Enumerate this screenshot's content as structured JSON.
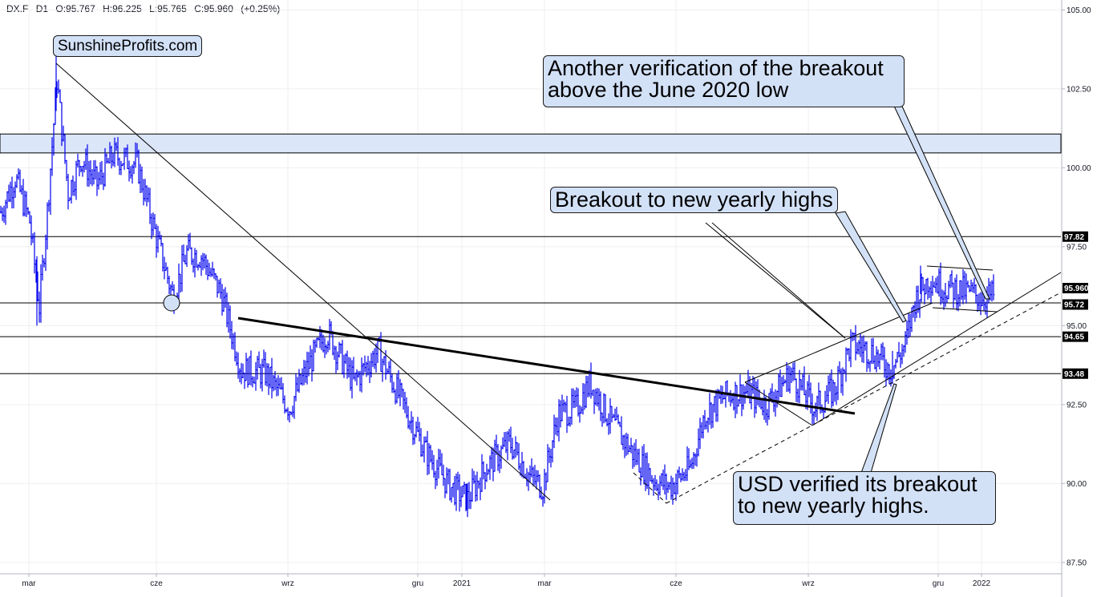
{
  "header": {
    "symbol": "DX.F",
    "timeframe": "D1",
    "open": "O:95.767",
    "high": "H:96.225",
    "low": "L:95.765",
    "close": "C:95.960",
    "change": "(+0.25%)"
  },
  "watermark": "SunshineProfits.com",
  "annotations": {
    "top_right": [
      "Another verification of the breakout",
      "above the June 2020 low"
    ],
    "middle": "Breakout to new yearly highs",
    "bottom_right": [
      "USD verified its breakout",
      "to new yearly highs."
    ]
  },
  "colors": {
    "price_bars": "#0000ee",
    "annotation_fill": "#d3e1f7",
    "zone_fill": "#dbe6f8",
    "grid": "#eeeeee",
    "price_label_bg": "#000000"
  },
  "chart_data": {
    "type": "ohlc",
    "symbol": "DX.F",
    "timeframe": "D1",
    "ylim": [
      87.5,
      106.2
    ],
    "y_ticks": [
      "105.00",
      "102.50",
      "100.00",
      "97.50",
      "95.00",
      "92.50",
      "90.00",
      "87.50"
    ],
    "x_ticks": [
      "mar",
      "cze",
      "wrz",
      "gru",
      "2021",
      "mar",
      "cze",
      "wrz",
      "gru",
      "2022"
    ],
    "price_labels": [
      {
        "text": "97.82",
        "value": 97.82
      },
      {
        "text": "95.960",
        "value": 95.96
      },
      {
        "text": "95.72",
        "value": 95.72
      },
      {
        "text": "94.65",
        "value": 94.65
      },
      {
        "text": "93.48",
        "value": 93.48
      }
    ],
    "resistance_zone": [
      100.47,
      101.07
    ],
    "horizontal_levels": [
      97.82,
      95.72,
      94.65,
      93.48
    ],
    "approx_close_path": [
      {
        "t": 0,
        "v": 98.6
      },
      {
        "t": 18,
        "v": 99.7
      },
      {
        "t": 36,
        "v": 98.3
      },
      {
        "t": 48,
        "v": 95.6
      },
      {
        "t": 58,
        "v": 98.6
      },
      {
        "t": 70,
        "v": 102.8
      },
      {
        "t": 84,
        "v": 99.2
      },
      {
        "t": 100,
        "v": 100.3
      },
      {
        "t": 120,
        "v": 99.5
      },
      {
        "t": 140,
        "v": 100.4
      },
      {
        "t": 170,
        "v": 100.1
      },
      {
        "t": 195,
        "v": 97.7
      },
      {
        "t": 215,
        "v": 95.9
      },
      {
        "t": 232,
        "v": 97.3
      },
      {
        "t": 250,
        "v": 97.2
      },
      {
        "t": 275,
        "v": 96.0
      },
      {
        "t": 300,
        "v": 93.6
      },
      {
        "t": 330,
        "v": 93.5
      },
      {
        "t": 360,
        "v": 92.4
      },
      {
        "t": 385,
        "v": 93.8
      },
      {
        "t": 407,
        "v": 94.8
      },
      {
        "t": 440,
        "v": 93.2
      },
      {
        "t": 470,
        "v": 94.2
      },
      {
        "t": 500,
        "v": 92.6
      },
      {
        "t": 530,
        "v": 91.0
      },
      {
        "t": 560,
        "v": 89.9
      },
      {
        "t": 582,
        "v": 89.5
      },
      {
        "t": 605,
        "v": 90.5
      },
      {
        "t": 635,
        "v": 91.3
      },
      {
        "t": 660,
        "v": 90.2
      },
      {
        "t": 676,
        "v": 89.9
      },
      {
        "t": 695,
        "v": 92.2
      },
      {
        "t": 718,
        "v": 92.4
      },
      {
        "t": 735,
        "v": 93.2
      },
      {
        "t": 760,
        "v": 92.0
      },
      {
        "t": 790,
        "v": 90.9
      },
      {
        "t": 815,
        "v": 90.1
      },
      {
        "t": 835,
        "v": 89.9
      },
      {
        "t": 860,
        "v": 90.5
      },
      {
        "t": 878,
        "v": 92.2
      },
      {
        "t": 905,
        "v": 92.8
      },
      {
        "t": 930,
        "v": 92.9
      },
      {
        "t": 955,
        "v": 92.5
      },
      {
        "t": 985,
        "v": 93.5
      },
      {
        "t": 1015,
        "v": 92.4
      },
      {
        "t": 1040,
        "v": 93.0
      },
      {
        "t": 1060,
        "v": 94.4
      },
      {
        "t": 1085,
        "v": 94.2
      },
      {
        "t": 1110,
        "v": 93.6
      },
      {
        "t": 1128,
        "v": 94.4
      },
      {
        "t": 1140,
        "v": 95.8
      },
      {
        "t": 1158,
        "v": 96.5
      },
      {
        "t": 1178,
        "v": 96.2
      },
      {
        "t": 1200,
        "v": 96.1
      },
      {
        "t": 1222,
        "v": 95.9
      },
      {
        "t": 1238,
        "v": 95.96
      }
    ]
  }
}
